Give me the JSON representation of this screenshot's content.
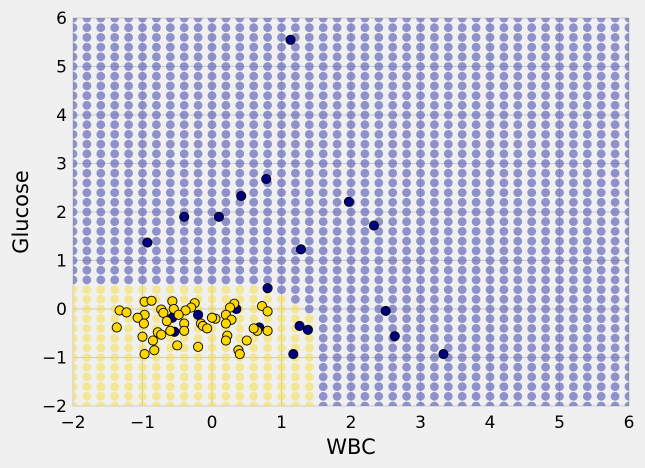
{
  "chart_data": {
    "type": "scatter",
    "title": "",
    "xlabel": "WBC",
    "ylabel": "Glucose",
    "xlim": [
      -2,
      6
    ],
    "ylim": [
      -2,
      6
    ],
    "xticks": [
      -2,
      -1,
      0,
      1,
      2,
      3,
      4,
      5,
      6
    ],
    "yticks": [
      -2,
      -1,
      0,
      1,
      2,
      3,
      4,
      5,
      6
    ],
    "grid": true,
    "background": {
      "description": "decision-region mesh of classifier predictions",
      "step": 0.2,
      "class_0_color": "#f5e04a",
      "class_1_color": "#5a5fb5",
      "class_0_region_x": [
        -2.0,
        1.6
      ],
      "class_0_region_y": [
        -2.0,
        0.6
      ],
      "class_0_region_poly_x": [
        -2.0,
        -1.1,
        0.0,
        0.8,
        1.2,
        1.6,
        1.6,
        -2.0
      ],
      "class_0_region_poly_y": [
        0.6,
        0.6,
        0.6,
        0.6,
        0.2,
        -0.4,
        -2.0,
        -2.0
      ]
    },
    "series": [
      {
        "class": 1,
        "color": "#000080",
        "points": [
          [
            1.13,
            5.55
          ],
          [
            0.78,
            2.68
          ],
          [
            0.42,
            2.33
          ],
          [
            -0.4,
            1.9
          ],
          [
            0.1,
            1.9
          ],
          [
            -0.93,
            1.37
          ],
          [
            1.97,
            2.21
          ],
          [
            2.33,
            1.72
          ],
          [
            1.28,
            1.23
          ],
          [
            0.8,
            0.43
          ],
          [
            0.35,
            0.0
          ],
          [
            -0.57,
            -0.18
          ],
          [
            -0.2,
            -0.12
          ],
          [
            0.68,
            -0.38
          ],
          [
            1.26,
            -0.35
          ],
          [
            1.38,
            -0.43
          ],
          [
            -0.54,
            -0.47
          ],
          [
            2.5,
            -0.04
          ],
          [
            2.63,
            -0.56
          ],
          [
            1.17,
            -0.93
          ],
          [
            3.33,
            -0.93
          ]
        ]
      },
      {
        "class": 0,
        "color": "#ffd700",
        "points": [
          [
            -0.97,
            0.15
          ],
          [
            -0.87,
            0.17
          ],
          [
            -0.57,
            0.16
          ],
          [
            -0.25,
            0.12
          ],
          [
            0.32,
            0.11
          ],
          [
            0.72,
            0.06
          ],
          [
            -0.73,
            -0.01
          ],
          [
            -0.55,
            0.0
          ],
          [
            -0.3,
            0.03
          ],
          [
            -0.38,
            -0.03
          ],
          [
            0.26,
            0.03
          ],
          [
            -1.33,
            -0.03
          ],
          [
            -1.23,
            -0.07
          ],
          [
            -0.97,
            -0.12
          ],
          [
            -0.7,
            -0.08
          ],
          [
            -0.48,
            -0.12
          ],
          [
            0.2,
            -0.12
          ],
          [
            0.05,
            -0.2
          ],
          [
            0.28,
            -0.22
          ],
          [
            0.8,
            -0.05
          ],
          [
            -1.07,
            -0.18
          ],
          [
            -0.98,
            -0.3
          ],
          [
            -0.65,
            -0.25
          ],
          [
            -0.16,
            -0.3
          ],
          [
            -0.13,
            -0.35
          ],
          [
            -0.4,
            -0.3
          ],
          [
            0.2,
            -0.3
          ],
          [
            -1.37,
            -0.38
          ],
          [
            -0.78,
            -0.48
          ],
          [
            -0.73,
            -0.53
          ],
          [
            -0.6,
            -0.45
          ],
          [
            -0.4,
            -0.45
          ],
          [
            -0.07,
            -0.4
          ],
          [
            0.22,
            -0.55
          ],
          [
            0.65,
            -0.45
          ],
          [
            0.8,
            -0.45
          ],
          [
            -1.0,
            -0.57
          ],
          [
            -0.85,
            -0.65
          ],
          [
            0.2,
            -0.65
          ],
          [
            0.5,
            -0.65
          ],
          [
            -0.5,
            -0.75
          ],
          [
            -0.2,
            -0.78
          ],
          [
            -0.83,
            -0.85
          ],
          [
            0.38,
            -0.85
          ],
          [
            0.4,
            -0.93
          ],
          [
            -0.97,
            -0.93
          ],
          [
            0.6,
            -0.4
          ],
          [
            0.0,
            -0.18
          ]
        ]
      }
    ]
  }
}
